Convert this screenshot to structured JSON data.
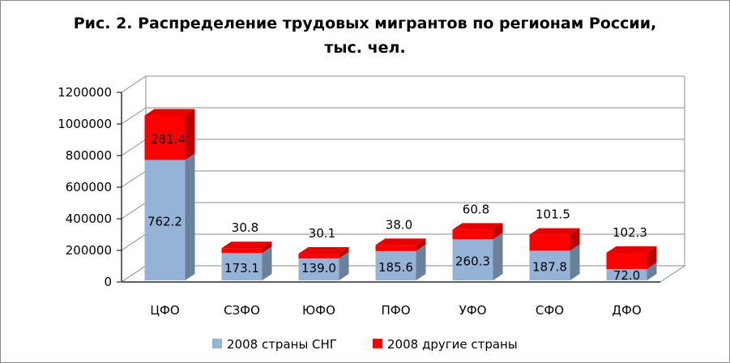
{
  "chart_data": {
    "type": "bar",
    "stacked": true,
    "three_d": true,
    "title": [
      "Рис. 2. Распределение трудовых мигрантов по регионам России,",
      "тыс. чел."
    ],
    "xlabel": "",
    "ylabel": "",
    "ylim": [
      0,
      1200000
    ],
    "yticks": [
      0,
      200000,
      400000,
      600000,
      800000,
      1000000,
      1200000
    ],
    "grid": true,
    "legend_position": "bottom",
    "categories": [
      "ЦФО",
      "СЗФО",
      "ЮФО",
      "ПФО",
      "УФО",
      "СФО",
      "ДФО"
    ],
    "series": [
      {
        "name": "2008 страны СНГ",
        "color": "#95b3d7",
        "values": [
          762200,
          173100,
          139000,
          185600,
          260300,
          187800,
          72000
        ],
        "labels": [
          "762.2",
          "173.1",
          "139.0",
          "185.6",
          "260.3",
          "187.8",
          "72.0"
        ]
      },
      {
        "name": "2008 другие страны",
        "color": "#ff0000",
        "values": [
          281400,
          30800,
          30100,
          38000,
          60800,
          101500,
          102300
        ],
        "labels": [
          "281.4",
          "30.8",
          "30.1",
          "38.0",
          "60.8",
          "101.5",
          "102.3"
        ]
      }
    ]
  }
}
